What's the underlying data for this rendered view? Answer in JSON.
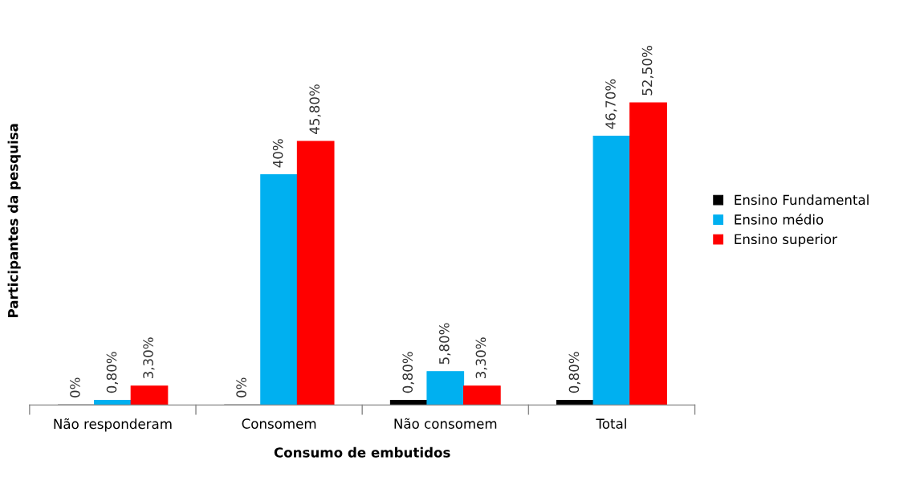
{
  "chart_data": {
    "type": "bar",
    "xlabel": "Consumo de embutidos",
    "ylabel": "Participantes da pesquisa",
    "categories": [
      "Não responderam",
      "Consomem",
      "Não consomem",
      "Total"
    ],
    "series": [
      {
        "name": "Ensino Fundamental",
        "color": "#000000",
        "values": [
          0,
          0,
          0.8,
          0.8
        ],
        "value_labels": [
          "0%",
          "0%",
          "0,80%",
          "0,80%"
        ]
      },
      {
        "name": "Ensino médio",
        "color": "#00b0f0",
        "values": [
          0.8,
          40,
          5.8,
          46.7
        ],
        "value_labels": [
          "0,80%",
          "40%",
          "5,80%",
          "46,70%"
        ]
      },
      {
        "name": "Ensino superior",
        "color": "#ff0000",
        "values": [
          3.3,
          45.8,
          3.3,
          52.5
        ],
        "value_labels": [
          "3,30%",
          "45,80%",
          "3,30%",
          "52,50%"
        ]
      }
    ],
    "legend": "right",
    "grid": false
  }
}
